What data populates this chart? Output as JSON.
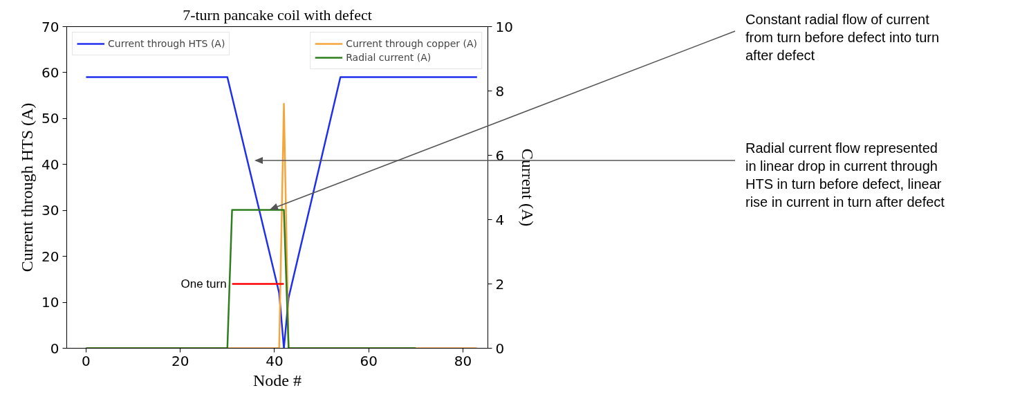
{
  "chart_data": {
    "type": "line",
    "title": "7-turn pancake coil with defect",
    "xlabel": "Node #",
    "ylabel": "Current through HTS (A)",
    "y2label": "Current (A)",
    "xlim": [
      -4.1,
      85.3
    ],
    "xticks": [
      0,
      20,
      40,
      60,
      80
    ],
    "ylim": [
      0,
      70
    ],
    "yticks": [
      0,
      10,
      20,
      30,
      40,
      50,
      60,
      70
    ],
    "y2lim": [
      0,
      10
    ],
    "y2ticks": [
      0,
      2,
      4,
      6,
      8,
      10
    ],
    "grid": false,
    "legend": "top",
    "line_style": "solid",
    "marker": "none",
    "series": [
      {
        "name": "Current through HTS (A)",
        "color": "#1f2ff0",
        "x": [
          0,
          30,
          41,
          42,
          43,
          54,
          83
        ],
        "values": [
          59,
          59,
          12,
          0,
          11,
          59,
          59
        ]
      },
      {
        "name": "Current through copper (A)",
        "color": "#f5a53a",
        "axis": "y2",
        "x": [
          0,
          41,
          42,
          43,
          83
        ],
        "values": [
          0,
          0,
          7.6,
          0,
          0
        ]
      },
      {
        "name": "Radial current (A)",
        "color": "#2e7d1e",
        "axis": "y2",
        "x": [
          0,
          30,
          31,
          42,
          43,
          70
        ],
        "values": [
          0,
          0,
          4.3,
          4.3,
          0,
          0
        ]
      },
      {
        "color": "#ff0000",
        "x": [
          31,
          42
        ],
        "values": [
          14,
          14
        ]
      }
    ],
    "annotations": [
      {
        "text": "One turn",
        "x": 31,
        "y": 14
      },
      "Constant radial flow of current\nfrom turn before defect into turn\nafter defect",
      "Radial current flow represented\nin linear drop in current through\nHTS in turn before defect, linear\nrise in current in turn after defect"
    ]
  }
}
